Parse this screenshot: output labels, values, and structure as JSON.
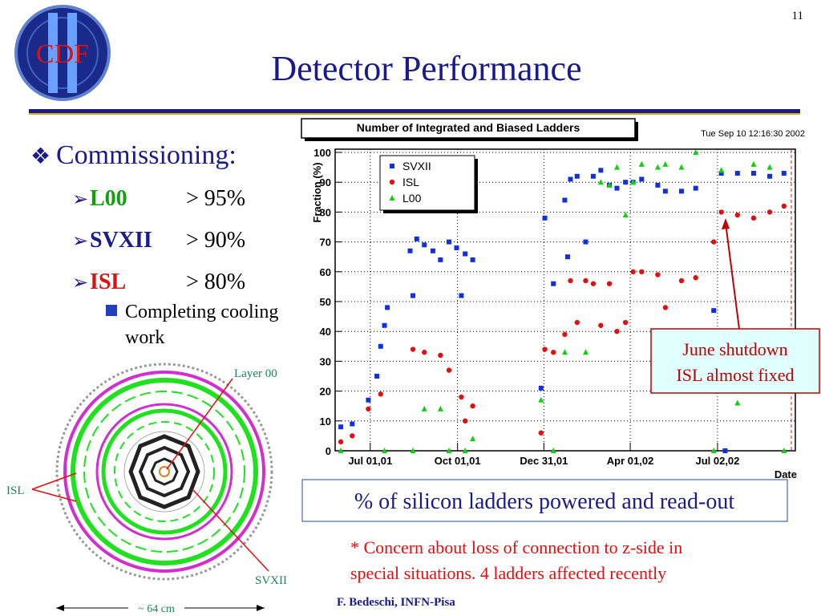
{
  "slide": {
    "page_number": "11",
    "logo": "CDF",
    "title": "Detector Performance",
    "bullet": "Commissioning:",
    "items": [
      {
        "name": "L00",
        "value": "> 95%"
      },
      {
        "name": "SVXII",
        "value": "> 90%"
      },
      {
        "name": "ISL",
        "value": "> 80%"
      }
    ],
    "sub_item": [
      "Completing cooling",
      "work"
    ],
    "diagram": {
      "layer00": "Layer 00",
      "isl": "ISL",
      "svxii": "SVXII",
      "size": "~ 64 cm"
    },
    "callout": [
      "June shutdown",
      "ISL almost fixed"
    ],
    "caption": "% of silicon ladders powered and read-out",
    "note": [
      "* Concern about loss of connection to z-side in",
      "special situations. 4 ladders affected recently"
    ],
    "author": "F. Bedeschi, INFN-Pisa"
  },
  "chart_data": {
    "type": "scatter",
    "title": "Number of Integrated and Biased Ladders",
    "timestamp": "Tue Sep 10 12:16:30 2002",
    "y_label": "Fraction (%)",
    "x_label": "Date",
    "xlim": [
      "2001-05-25",
      "2002-09-22"
    ],
    "xticks": [
      {
        "value": "2001-07-01",
        "label": "Jul 01,01"
      },
      {
        "value": "2001-10-01",
        "label": "Oct 01,01"
      },
      {
        "value": "2001-12-31",
        "label": "Dec 31,01"
      },
      {
        "value": "2002-04-01",
        "label": "Apr 01,02"
      },
      {
        "value": "2002-07-02",
        "label": "Jul 02,02"
      }
    ],
    "ylim": [
      0,
      100
    ],
    "yticks": [
      0,
      10,
      20,
      30,
      40,
      50,
      60,
      70,
      80,
      90,
      100
    ],
    "grid": true,
    "series": [
      {
        "name": "SVXII",
        "color": "#1030e0",
        "marker": "square",
        "x": [
          "2001-05-31",
          "2001-06-12",
          "2001-06-29",
          "2001-07-08",
          "2001-07-12",
          "2001-07-16",
          "2001-07-19",
          "2001-08-12",
          "2001-08-15",
          "2001-08-19",
          "2001-08-27",
          "2001-09-05",
          "2001-09-13",
          "2001-09-22",
          "2001-09-30",
          "2001-10-05",
          "2001-10-09",
          "2001-10-17",
          "2001-12-28",
          "2002-01-01",
          "2002-01-10",
          "2002-01-22",
          "2002-01-25",
          "2002-01-28",
          "2002-02-04",
          "2002-02-13",
          "2002-02-21",
          "2002-03-01",
          "2002-03-10",
          "2002-03-18",
          "2002-03-27",
          "2002-04-04",
          "2002-04-13",
          "2002-04-30",
          "2002-05-08",
          "2002-05-25",
          "2002-06-09",
          "2002-06-28",
          "2002-07-06",
          "2002-07-10",
          "2002-07-23",
          "2002-08-09",
          "2002-08-26",
          "2002-09-10"
        ],
        "values": [
          8,
          9,
          17,
          25,
          35,
          42,
          48,
          67,
          52,
          71,
          69,
          67,
          64,
          70,
          68,
          52,
          66,
          64,
          21,
          78,
          56,
          84,
          65,
          91,
          92,
          70,
          92,
          94,
          89,
          88,
          90,
          90,
          91,
          89,
          87,
          87,
          88,
          47,
          93,
          0,
          93,
          93,
          92,
          93
        ]
      },
      {
        "name": "ISL",
        "color": "#e01010",
        "marker": "circle",
        "x": [
          "2001-05-31",
          "2001-06-12",
          "2001-06-29",
          "2001-07-12",
          "2001-08-15",
          "2001-08-27",
          "2001-09-13",
          "2001-09-22",
          "2001-10-05",
          "2001-10-09",
          "2001-10-17",
          "2001-12-28",
          "2002-01-01",
          "2002-01-10",
          "2002-01-22",
          "2002-01-28",
          "2002-02-04",
          "2002-02-13",
          "2002-02-21",
          "2002-03-01",
          "2002-03-10",
          "2002-03-18",
          "2002-03-27",
          "2002-04-04",
          "2002-04-13",
          "2002-04-30",
          "2002-05-08",
          "2002-05-25",
          "2002-06-09",
          "2002-06-28",
          "2002-07-06",
          "2002-07-23",
          "2002-08-09",
          "2002-08-26",
          "2002-09-10"
        ],
        "values": [
          3,
          5,
          14,
          19,
          34,
          33,
          32,
          27,
          18,
          10,
          15,
          6,
          34,
          33,
          39,
          57,
          43,
          57,
          56,
          42,
          56,
          40,
          43,
          60,
          60,
          59,
          48,
          57,
          58,
          70,
          80,
          79,
          78,
          80,
          82
        ]
      },
      {
        "name": "L00",
        "color": "#10d010",
        "marker": "triangle",
        "x": [
          "2001-05-31",
          "2001-07-16",
          "2001-08-15",
          "2001-08-27",
          "2001-09-13",
          "2001-09-22",
          "2001-10-09",
          "2001-10-17",
          "2001-12-28",
          "2002-01-10",
          "2002-01-22",
          "2002-02-13",
          "2002-03-01",
          "2002-03-10",
          "2002-03-18",
          "2002-03-27",
          "2002-04-04",
          "2002-04-13",
          "2002-04-30",
          "2002-05-08",
          "2002-05-25",
          "2002-06-09",
          "2002-06-28",
          "2002-07-06",
          "2002-07-23",
          "2002-08-09",
          "2002-08-26",
          "2002-09-10"
        ],
        "values": [
          0,
          0,
          0,
          14,
          14,
          0,
          0,
          4,
          17,
          0,
          33,
          33,
          90,
          89,
          95,
          79,
          90,
          96,
          95,
          96,
          95,
          100,
          0,
          94,
          16,
          96,
          95,
          0
        ]
      }
    ]
  }
}
